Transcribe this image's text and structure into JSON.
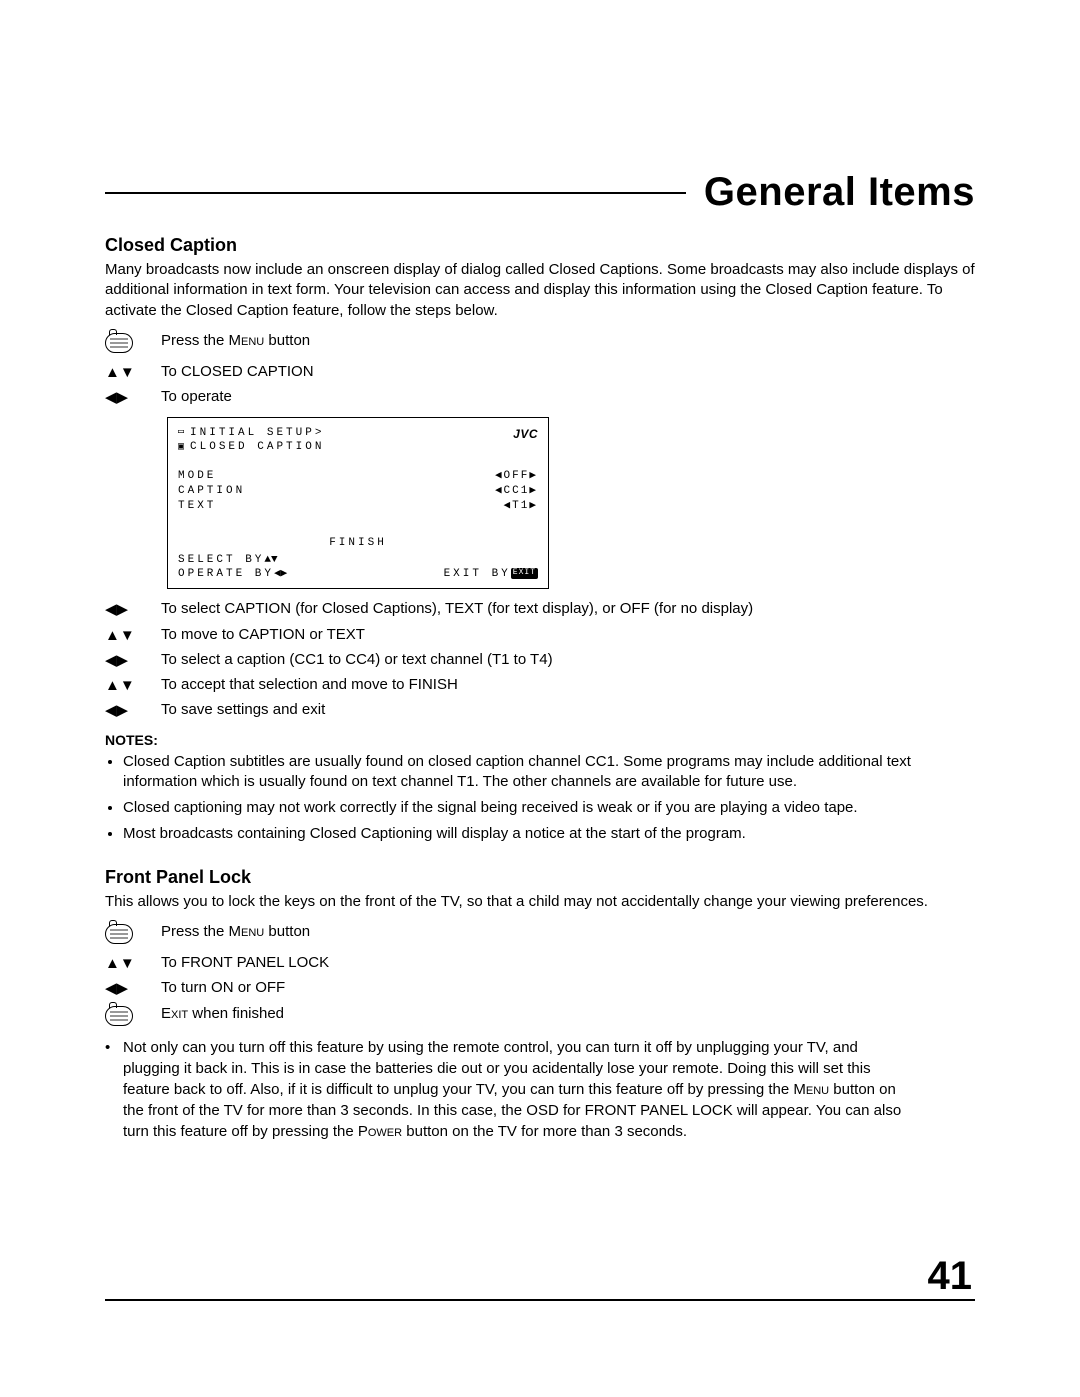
{
  "page_number": "41",
  "title": "General Items",
  "section1": {
    "heading": "Closed Caption",
    "intro": "Many broadcasts now include an onscreen display of dialog called Closed Captions. Some broadcasts may also include displays of additional information in text form. Your television can access and display this information using the Closed Caption feature. To activate the Closed Caption feature, follow the steps below.",
    "steps": [
      {
        "icon": "remote",
        "text_pre": "Press the ",
        "text_sc": "Menu",
        "text_post": " button"
      },
      {
        "icon": "ud",
        "text": "To CLOSED CAPTION"
      },
      {
        "icon": "lr",
        "text": "To operate"
      }
    ],
    "osd": {
      "brand": "JVC",
      "head1": "INITIAL SETUP>",
      "head2": "CLOSED CAPTION",
      "rows": [
        {
          "label": "MODE",
          "value": "◀OFF▶"
        },
        {
          "label": "CAPTION",
          "value": "◀CC1▶"
        },
        {
          "label": "TEXT",
          "value": "◀T1▶"
        }
      ],
      "finish": "FINISH",
      "select": "SELECT  BY",
      "operate": "OPERATE BY",
      "exit": "EXIT BY",
      "exit_tag": "EXIT"
    },
    "steps_after": [
      {
        "icon": "lr",
        "text": "To select CAPTION (for Closed Captions), TEXT (for text display), or OFF (for no display)"
      },
      {
        "icon": "ud",
        "text": "To move to CAPTION or TEXT"
      },
      {
        "icon": "lr",
        "text": "To select a caption (CC1 to CC4) or text channel (T1 to T4)"
      },
      {
        "icon": "ud",
        "text": "To accept that selection and move to FINISH"
      },
      {
        "icon": "lr",
        "text": "To save settings and exit"
      }
    ],
    "notes_heading": "NOTES:",
    "notes": [
      "Closed Caption subtitles are usually found on closed caption channel CC1. Some programs may include additional text information which is usually found on text channel T1. The other channels are available for future use.",
      "Closed captioning may not work correctly if the signal being received is weak or if you are playing a video tape.",
      "Most broadcasts containing Closed Captioning will display a notice at the start of the program."
    ]
  },
  "section2": {
    "heading": "Front Panel Lock",
    "intro": "This allows you to lock the keys on the front of the TV, so that a child may not accidentally change your viewing preferences.",
    "steps": [
      {
        "icon": "remote",
        "text_pre": "Press the ",
        "text_sc": "Menu",
        "text_post": " button"
      },
      {
        "icon": "ud",
        "text": "To FRONT PANEL LOCK"
      },
      {
        "icon": "lr",
        "text": "To turn ON or OFF"
      },
      {
        "icon": "remote",
        "text_pre": "",
        "text_sc": "Exit",
        "text_post": " when finished"
      }
    ],
    "note_pre": "Not only can you turn off this feature by using the remote control, you can turn it off by unplugging your TV, and plugging it back in.  This is in case the batteries die out or you acidentally lose your remote.  Doing this will set this feature back to off. Also, if it is difficult to unplug your TV, you can turn this feature off by pressing the ",
    "note_sc1": "Menu",
    "note_mid": " button on the front of the TV for more than 3 seconds.  In this case, the OSD for FRONT PANEL LOCK will appear. You can also turn this feature off by pressing the ",
    "note_sc2": "Power",
    "note_post": " button on the TV for more than 3 seconds."
  },
  "glyphs": {
    "ud": "▲▼",
    "lr": "◀▶",
    "ud_boxed": "▲▼",
    "lr_boxed": "◀▶"
  }
}
